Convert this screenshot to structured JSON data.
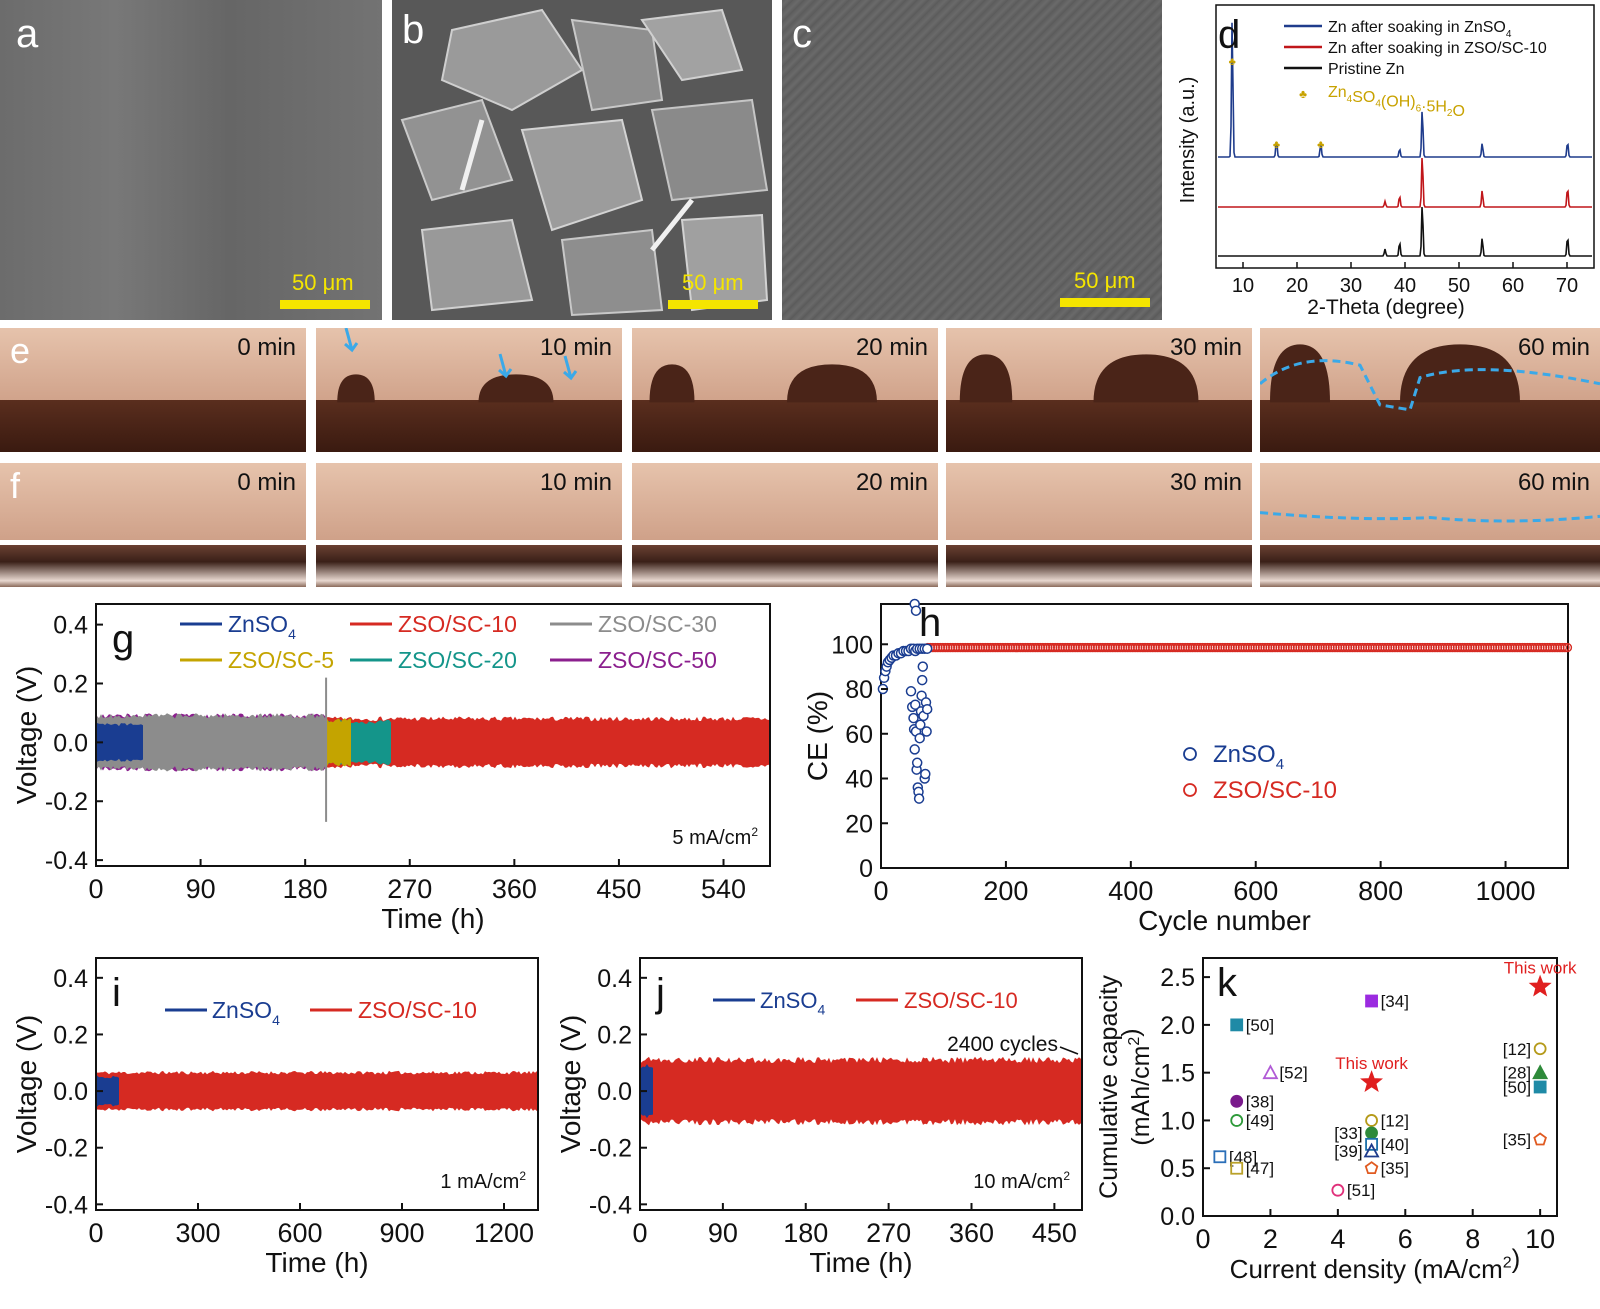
{
  "sem_panels": [
    {
      "letter": "a",
      "scale": "50 μm"
    },
    {
      "letter": "b",
      "scale": "50 μm"
    },
    {
      "letter": "c",
      "scale": "50 μm"
    }
  ],
  "panel_d": {
    "letter": "d",
    "legend": [
      "Zn after soaking in ZnSO4",
      "Zn after soaking in ZSO/SC-10",
      "Pristine Zn",
      "Zn4SO4(OH)6·5H2O"
    ],
    "ylabel": "Intensity (a.u.)",
    "xlabel": "2-Theta (degree)",
    "xticks": [
      "10",
      "20",
      "30",
      "40",
      "50",
      "60",
      "70"
    ],
    "colors": {
      "znso4": "#1f3c8c",
      "zso": "#c0161a",
      "pristine": "#111111",
      "marker": "#c8a200"
    }
  },
  "optical_rows": [
    {
      "letter": "e",
      "times": [
        "0 min",
        "10 min",
        "20 min",
        "30 min",
        "60 min"
      ]
    },
    {
      "letter": "f",
      "times": [
        "0 min",
        "10 min",
        "20 min",
        "30 min",
        "60 min"
      ]
    }
  ],
  "panel_g": {
    "letter": "g",
    "legend": [
      "ZnSO4",
      "ZSO/SC-10",
      "ZSO/SC-30",
      "ZSO/SC-5",
      "ZSO/SC-20",
      "ZSO/SC-50"
    ],
    "note": "5 mA/cm2",
    "ylabel": "Voltage (V)",
    "xlabel": "Time (h)",
    "yticks": [
      "-0.4",
      "-0.2",
      "0.0",
      "0.2",
      "0.4"
    ],
    "xticks": [
      "0",
      "90",
      "180",
      "270",
      "360",
      "450",
      "540"
    ]
  },
  "panel_h": {
    "letter": "h",
    "legend": [
      "ZnSO4",
      "ZSO/SC-10"
    ],
    "ylabel": "CE (%)",
    "xlabel": "Cycle number",
    "yticks": [
      "0",
      "20",
      "40",
      "60",
      "80",
      "100"
    ],
    "xticks": [
      "0",
      "200",
      "400",
      "600",
      "800",
      "1000"
    ]
  },
  "panel_i": {
    "letter": "i",
    "legend": [
      "ZnSO4",
      "ZSO/SC-10"
    ],
    "note": "1 mA/cm2",
    "ylabel": "Voltage (V)",
    "xlabel": "Time (h)",
    "yticks": [
      "-0.4",
      "-0.2",
      "0.0",
      "0.2",
      "0.4"
    ],
    "xticks": [
      "0",
      "300",
      "600",
      "900",
      "1200"
    ]
  },
  "panel_j": {
    "letter": "j",
    "legend": [
      "ZnSO4",
      "ZSO/SC-10"
    ],
    "note": "10 mA/cm2",
    "annotation": "2400 cycles",
    "ylabel": "Voltage (V)",
    "xlabel": "Time (h)",
    "yticks": [
      "-0.4",
      "-0.2",
      "0.0",
      "0.2",
      "0.4"
    ],
    "xticks": [
      "0",
      "90",
      "180",
      "270",
      "360",
      "450"
    ]
  },
  "panel_k": {
    "letter": "k",
    "ylabel": "Cumulative capacity (mAh/cm2)",
    "xlabel": "Current density (mA/cm2)",
    "yticks": [
      "0.0",
      "0.5",
      "1.0",
      "1.5",
      "2.0",
      "2.5"
    ],
    "xticks": [
      "0",
      "2",
      "4",
      "6",
      "8",
      "10"
    ]
  },
  "chart_data": [
    {
      "type": "line",
      "panel": "d",
      "xlabel": "2-Theta (degree)",
      "ylabel": "Intensity (a.u.)",
      "xlim": [
        5,
        75
      ],
      "series": [
        {
          "name": "Zn after soaking in ZnSO4",
          "peaks": [
            [
              8.0,
              1.0
            ],
            [
              16.2,
              0.12
            ],
            [
              24.4,
              0.1
            ],
            [
              39.0,
              0.06
            ],
            [
              43.2,
              0.35
            ],
            [
              54.3,
              0.1
            ],
            [
              70.1,
              0.11
            ]
          ]
        },
        {
          "name": "Zn after soaking in ZSO/SC-10",
          "peaks": [
            [
              36.3,
              0.04
            ],
            [
              39.0,
              0.08
            ],
            [
              43.2,
              0.38
            ],
            [
              54.3,
              0.12
            ],
            [
              70.1,
              0.14
            ]
          ]
        },
        {
          "name": "Pristine Zn",
          "peaks": [
            [
              36.3,
              0.05
            ],
            [
              39.0,
              0.1
            ],
            [
              43.2,
              0.38
            ],
            [
              54.3,
              0.13
            ],
            [
              70.1,
              0.14
            ]
          ]
        }
      ],
      "markers": [
        {
          "name": "Zn4SO4(OH)6·5H2O",
          "x": [
            8.0,
            16.2,
            24.4
          ]
        }
      ]
    },
    {
      "type": "area",
      "panel": "g",
      "xlabel": "Time (h)",
      "ylabel": "Voltage (V)",
      "xlim": [
        0,
        580
      ],
      "ylim": [
        -0.42,
        0.47
      ],
      "series": [
        {
          "name": "ZSO/SC-10",
          "color": "#d62a22",
          "end_time": 580,
          "amplitude": 0.08
        },
        {
          "name": "ZSO/SC-20",
          "color": "#14958a",
          "end_time": 255,
          "amplitude": 0.07
        },
        {
          "name": "ZSO/SC-5",
          "color": "#c4a400",
          "end_time": 220,
          "amplitude": 0.075
        },
        {
          "name": "ZSO/SC-50",
          "color": "#8b1f8e",
          "end_time": 200,
          "amplitude": 0.09
        },
        {
          "name": "ZSO/SC-30",
          "color": "#8c8c8c",
          "end_time": 200,
          "amplitude": 0.09
        },
        {
          "name": "ZnSO4",
          "color": "#1a3d91",
          "end_time": 42,
          "amplitude": 0.06
        }
      ]
    },
    {
      "type": "scatter",
      "panel": "h",
      "xlabel": "Cycle number",
      "ylabel": "CE (%)",
      "xlim": [
        0,
        1100
      ],
      "ylim": [
        0,
        118
      ],
      "series": [
        {
          "name": "ZnSO4",
          "points": [
            [
              3,
              80
            ],
            [
              5,
              85
            ],
            [
              7,
              88
            ],
            [
              9,
              90
            ],
            [
              11,
              92
            ],
            [
              14,
              93
            ],
            [
              17,
              94
            ],
            [
              20,
              95
            ],
            [
              24,
              95
            ],
            [
              28,
              96
            ],
            [
              32,
              96
            ],
            [
              36,
              97
            ],
            [
              40,
              97
            ],
            [
              44,
              97
            ],
            [
              48,
              98
            ],
            [
              52,
              98
            ],
            [
              55,
              97
            ],
            [
              58,
              98
            ],
            [
              62,
              98
            ],
            [
              66,
              98
            ],
            [
              70,
              98
            ],
            [
              74,
              98
            ],
            [
              48,
              79
            ],
            [
              50,
              72
            ],
            [
              52,
              67
            ],
            [
              53,
              62
            ],
            [
              54,
              53
            ],
            [
              55,
              73
            ],
            [
              56,
              61
            ],
            [
              57,
              44
            ],
            [
              58,
              47
            ],
            [
              59,
              36
            ],
            [
              60,
              34
            ],
            [
              61,
              31
            ],
            [
              62,
              58
            ],
            [
              63,
              64
            ],
            [
              64,
              70
            ],
            [
              65,
              77
            ],
            [
              66,
              84
            ],
            [
              67,
              90
            ],
            [
              68,
              68
            ],
            [
              70,
              40
            ],
            [
              71,
              42
            ],
            [
              72,
              74
            ],
            [
              73,
              61
            ],
            [
              74,
              71
            ],
            [
              54,
              118
            ],
            [
              56,
              115
            ]
          ]
        },
        {
          "name": "ZSO/SC-10",
          "start": 75,
          "end": 1100,
          "value": 98.5
        }
      ]
    },
    {
      "type": "area",
      "panel": "i",
      "xlabel": "Time (h)",
      "ylabel": "Voltage (V)",
      "xlim": [
        0,
        1300
      ],
      "ylim": [
        -0.42,
        0.47
      ],
      "series": [
        {
          "name": "ZSO/SC-10",
          "color": "#d62a22",
          "end_time": 1300,
          "amplitude": 0.065
        },
        {
          "name": "ZnSO4",
          "color": "#1a3d91",
          "end_time": 70,
          "amplitude": 0.05
        }
      ]
    },
    {
      "type": "area",
      "panel": "j",
      "xlabel": "Time (h)",
      "ylabel": "Voltage (V)",
      "xlim": [
        0,
        480
      ],
      "ylim": [
        -0.42,
        0.47
      ],
      "series": [
        {
          "name": "ZSO/SC-10",
          "color": "#d62a22",
          "end_time": 480,
          "amplitude": 0.11
        },
        {
          "name": "ZnSO4",
          "color": "#1a3d91",
          "end_time": 15,
          "amplitude": 0.09
        }
      ]
    },
    {
      "type": "scatter",
      "panel": "k",
      "xlabel": "Current density (mA/cm2)",
      "ylabel": "Cumulative capacity (mAh/cm2)",
      "xlim": [
        0,
        10.5
      ],
      "ylim": [
        0,
        2.7
      ],
      "points": [
        {
          "label": "[50]",
          "x": 1,
          "y": 2.0,
          "marker": "square",
          "filled": true,
          "color": "#1f8aa6",
          "side": "right"
        },
        {
          "label": "[34]",
          "x": 5,
          "y": 2.25,
          "marker": "square",
          "filled": true,
          "color": "#9b2be0",
          "side": "right"
        },
        {
          "label": "[52]",
          "x": 2,
          "y": 1.5,
          "marker": "triangle",
          "filled": false,
          "color": "#b15bd6",
          "side": "right"
        },
        {
          "label": "[38]",
          "x": 1,
          "y": 1.2,
          "marker": "circle",
          "filled": true,
          "color": "#7a1a8c",
          "side": "right"
        },
        {
          "label": "[49]",
          "x": 1,
          "y": 1.0,
          "marker": "circle",
          "filled": false,
          "color": "#2e9a3a",
          "side": "right"
        },
        {
          "label": "[48]",
          "x": 0.5,
          "y": 0.62,
          "marker": "square",
          "filled": false,
          "color": "#2a6fb8",
          "side": "right"
        },
        {
          "label": "[47]",
          "x": 1,
          "y": 0.5,
          "marker": "square",
          "filled": false,
          "color": "#b9a12a",
          "side": "right"
        },
        {
          "label": "[12]",
          "x": 5,
          "y": 1.0,
          "marker": "circle",
          "filled": false,
          "color": "#b59a1a",
          "side": "right"
        },
        {
          "label": "[33]",
          "x": 5,
          "y": 0.87,
          "marker": "circle",
          "filled": true,
          "color": "#2e8a3a",
          "side": "left"
        },
        {
          "label": "[40]",
          "x": 5,
          "y": 0.75,
          "marker": "square",
          "filled": false,
          "color": "#1a6fa8",
          "side": "right"
        },
        {
          "label": "[39]",
          "x": 5,
          "y": 0.68,
          "marker": "triangle",
          "filled": false,
          "color": "#1f3c8c",
          "side": "left"
        },
        {
          "label": "[35]",
          "x": 5,
          "y": 0.5,
          "marker": "pentagon",
          "filled": false,
          "color": "#e05a20",
          "side": "right"
        },
        {
          "label": "[51]",
          "x": 4,
          "y": 0.27,
          "marker": "circle",
          "filled": false,
          "color": "#e0307a",
          "side": "right"
        },
        {
          "label": "This work",
          "x": 5,
          "y": 1.4,
          "marker": "star",
          "filled": true,
          "color": "#e01f1f",
          "side": "top"
        },
        {
          "label": "[12]",
          "x": 10,
          "y": 1.75,
          "marker": "circle",
          "filled": false,
          "color": "#b59a1a",
          "side": "left"
        },
        {
          "label": "[28]",
          "x": 10,
          "y": 1.5,
          "marker": "triangle",
          "filled": true,
          "color": "#2e8a3a",
          "side": "left"
        },
        {
          "label": "[50]",
          "x": 10,
          "y": 1.35,
          "marker": "square",
          "filled": true,
          "color": "#1f8aa6",
          "side": "left"
        },
        {
          "label": "[35]",
          "x": 10,
          "y": 0.8,
          "marker": "pentagon",
          "filled": false,
          "color": "#e05a20",
          "side": "left"
        },
        {
          "label": "This work",
          "x": 10,
          "y": 2.4,
          "marker": "star",
          "filled": true,
          "color": "#e01f1f",
          "side": "top"
        }
      ]
    }
  ]
}
